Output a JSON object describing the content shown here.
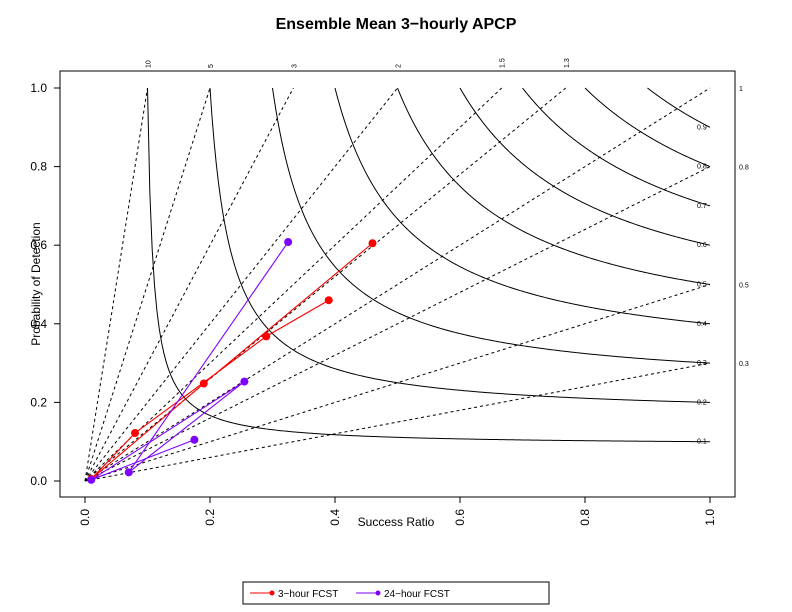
{
  "chart_data": {
    "type": "scatter",
    "subtype": "performance-diagram",
    "title": "Ensemble Mean 3−hourly APCP",
    "xlabel": "Success Ratio",
    "ylabel": "Probability of Detection",
    "xlim": [
      0,
      1
    ],
    "ylim": [
      0,
      1
    ],
    "x_ticks": [
      "0.0",
      "0.2",
      "0.4",
      "0.6",
      "0.8",
      "1.0"
    ],
    "y_ticks": [
      "0.0",
      "0.2",
      "0.4",
      "0.6",
      "0.8",
      "1.0"
    ],
    "csi_levels": [
      0.1,
      0.2,
      0.3,
      0.4,
      0.5,
      0.6,
      0.7,
      0.8,
      0.9
    ],
    "csi_labels": [
      "0.1",
      "0.2",
      "0.3",
      "0.4",
      "0.5",
      "0.6",
      "0.7",
      "0.8",
      "0.9"
    ],
    "bias_levels": [
      0.3,
      0.5,
      0.8,
      1,
      1.3,
      1.5,
      2,
      3,
      5,
      10
    ],
    "bias_labels_top": [
      "10",
      "5",
      "3",
      "2",
      "1.5",
      "1.3"
    ],
    "bias_labels_right": [
      "1",
      "0.8",
      "0.5",
      "0.3"
    ],
    "grid": false,
    "legend_position": "bottom",
    "series": [
      {
        "name": "3−hour FCST",
        "color": "#ff0000",
        "points": [
          {
            "x": 0.46,
            "y": 0.605
          },
          {
            "x": 0.19,
            "y": 0.248
          },
          {
            "x": 0.01,
            "y": 0.005
          },
          {
            "x": 0.08,
            "y": 0.122
          },
          {
            "x": 0.29,
            "y": 0.368
          },
          {
            "x": 0.39,
            "y": 0.46
          }
        ]
      },
      {
        "name": "24−hour FCST",
        "color": "#7f00ff",
        "points": [
          {
            "x": 0.325,
            "y": 0.608
          },
          {
            "x": 0.07,
            "y": 0.022
          },
          {
            "x": 0.255,
            "y": 0.253
          },
          {
            "x": 0.01,
            "y": 0.003
          },
          {
            "x": 0.175,
            "y": 0.105
          }
        ]
      }
    ]
  }
}
